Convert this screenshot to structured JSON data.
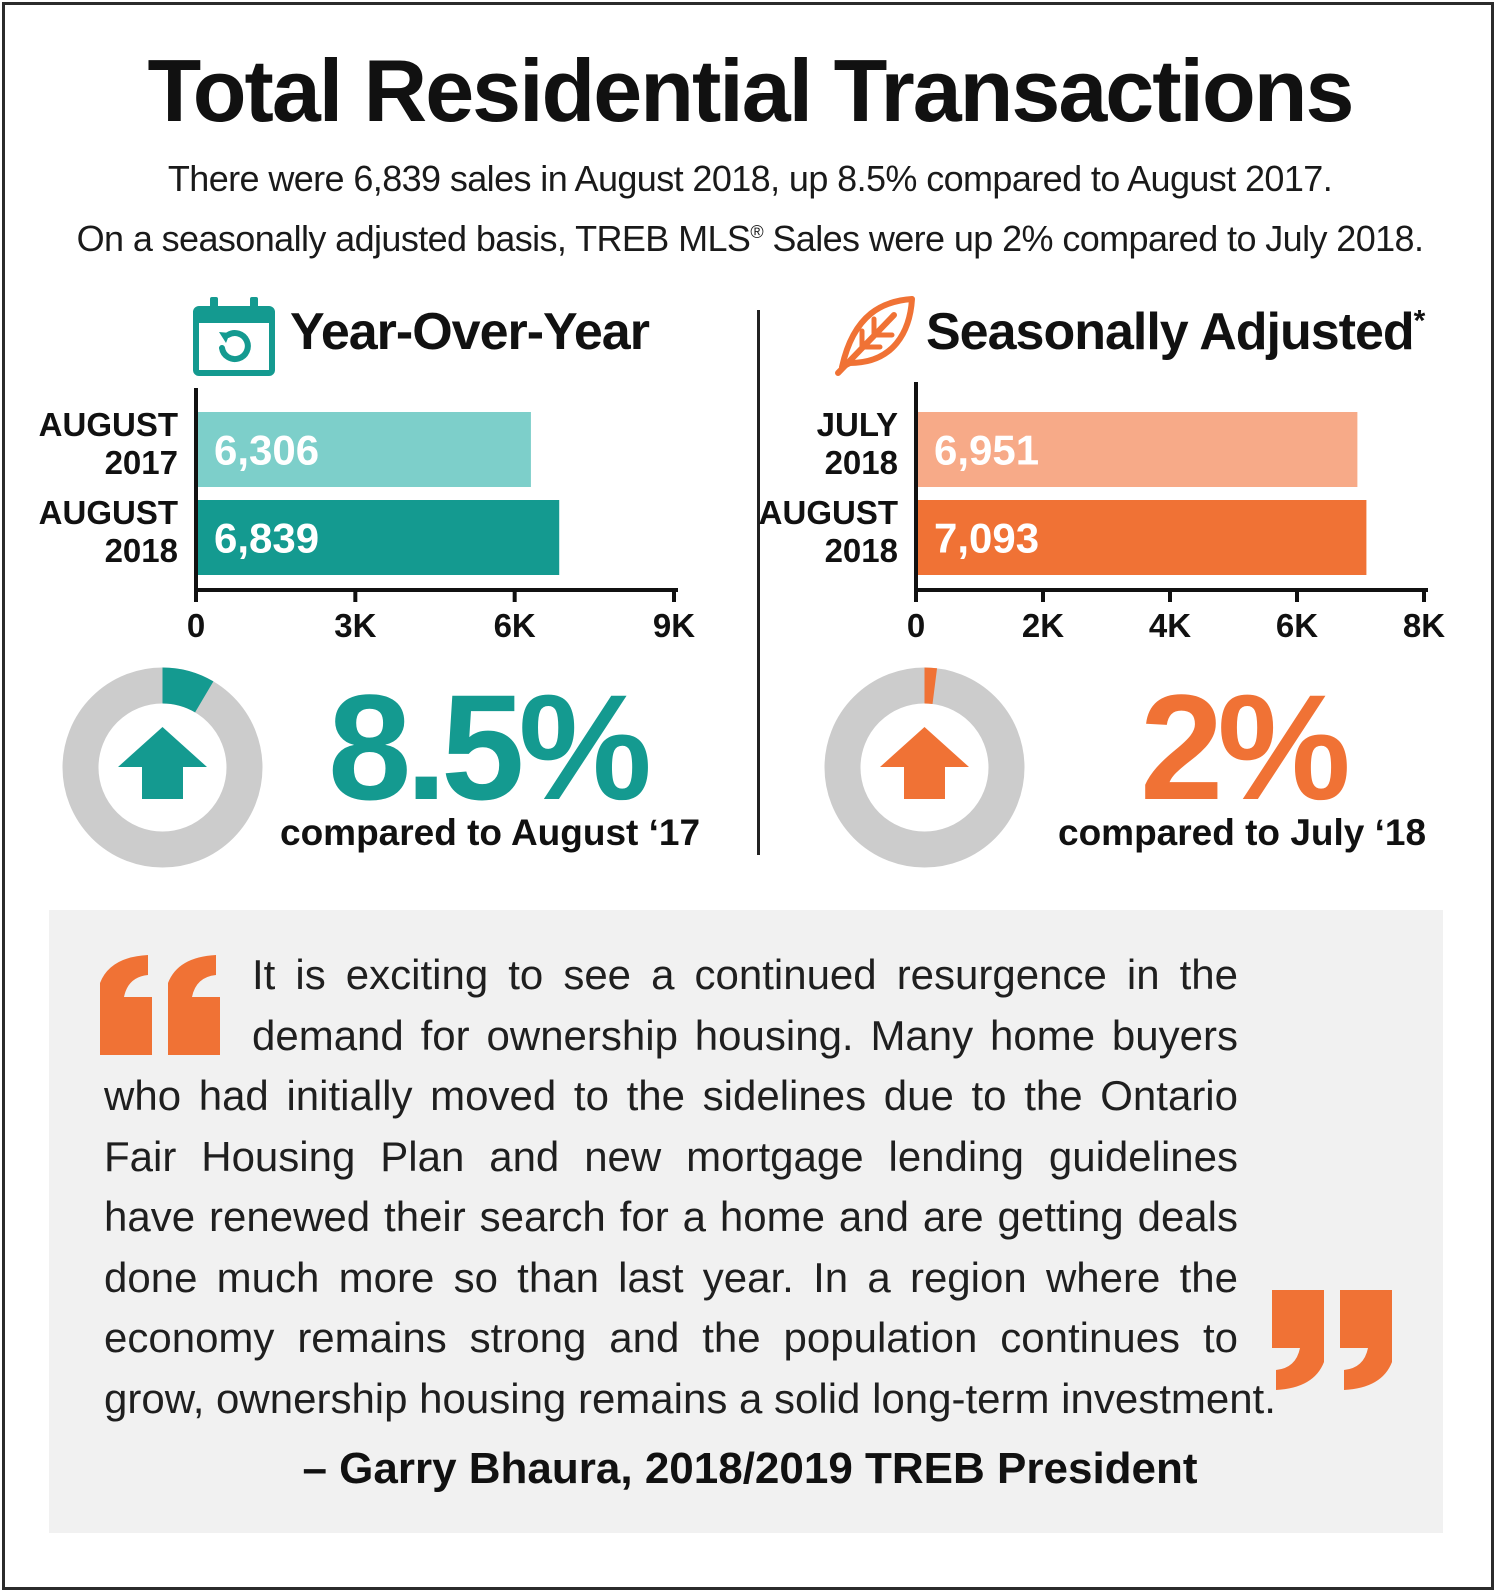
{
  "title": "Total Residential Transactions",
  "subtitle_line1": "There were 6,839 sales in August 2018, up 8.5% compared to August 2017.",
  "subtitle_line2_pre": "On a seasonally adjusted basis, TREB MLS",
  "subtitle_line2_mark": "®",
  "subtitle_line2_post": " Sales were up 2% compared to July 2018.",
  "colors": {
    "teal_dark": "#149a90",
    "teal_light": "#7dcfca",
    "orange_dark": "#f07235",
    "orange_light": "#f7aa88",
    "ring_gray": "#cccccc"
  },
  "icons": {
    "yoy": "calendar-refresh-icon",
    "sa": "leaf-icon",
    "up_arrow": "arrow-up-icon",
    "quote_open": "open-quote-icon",
    "quote_close": "close-quote-icon"
  },
  "yoy": {
    "heading": "Year-Over-Year",
    "percent": "8.5%",
    "compare": "compared to August ‘17",
    "ring_fraction": 0.085
  },
  "sa": {
    "heading": "Seasonally Adjusted",
    "heading_mark": "*",
    "percent": "2%",
    "compare": "compared to July ‘18",
    "ring_fraction": 0.02
  },
  "chart_data": [
    {
      "type": "bar",
      "orientation": "horizontal",
      "categories": [
        [
          "AUGUST",
          "2017"
        ],
        [
          "AUGUST",
          "2018"
        ]
      ],
      "values": [
        6306,
        6839
      ],
      "value_labels": [
        "6,306",
        "6,839"
      ],
      "xlim": [
        0,
        9000
      ],
      "xticks": [
        0,
        3000,
        6000,
        9000
      ],
      "xtick_labels": [
        "0",
        "3K",
        "6K",
        "9K"
      ],
      "grid": false
    },
    {
      "type": "bar",
      "orientation": "horizontal",
      "categories": [
        [
          "JULY",
          "2018"
        ],
        [
          "AUGUST",
          "2018"
        ]
      ],
      "values": [
        6951,
        7093
      ],
      "value_labels": [
        "6,951",
        "7,093"
      ],
      "xlim": [
        0,
        8000
      ],
      "xticks": [
        0,
        2000,
        4000,
        6000,
        8000
      ],
      "xtick_labels": [
        "0",
        "2K",
        "4K",
        "6K",
        "8K"
      ],
      "grid": false
    }
  ],
  "quote": {
    "text": "It is exciting to see a continued resurgence in the demand for ownership housing. Many home buyers who had initially moved to the sidelines due to the Ontario Fair Housing Plan and new mortgage lending guidelines have renewed their search for a home and are getting deals done much more so than last year.  In a region where the economy remains strong and the population continues to grow, ownership housing remains a solid long-term investment.",
    "author": "– Garry Bhaura, 2018/2019 TREB President"
  }
}
